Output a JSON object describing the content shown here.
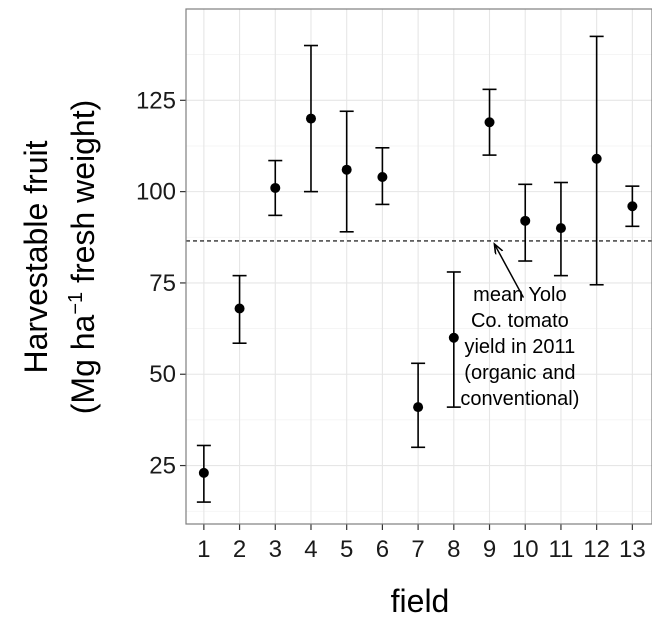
{
  "chart_data": {
    "type": "scatter",
    "subtype": "point-with-errorbars",
    "title": "",
    "xlabel": "field",
    "ylabel_line1": "Harvestable fruit",
    "ylabel_line2_pre": "(Mg ha",
    "ylabel_line2_sup": "−1",
    "ylabel_line2_post": " fresh weight)",
    "categories": [
      "1",
      "2",
      "3",
      "4",
      "5",
      "6",
      "7",
      "8",
      "9",
      "10",
      "11",
      "12",
      "13"
    ],
    "values": [
      23,
      68,
      101,
      120,
      106,
      104,
      41,
      60,
      119,
      92,
      90,
      109,
      96
    ],
    "error_low": [
      15,
      58.5,
      93.5,
      100,
      89,
      96.5,
      30,
      41,
      110,
      81,
      77,
      74.5,
      90.5
    ],
    "error_high": [
      30.5,
      77,
      108.5,
      140,
      122,
      112,
      53,
      78,
      128,
      102,
      102.5,
      142.5,
      101.5
    ],
    "yticks": [
      25,
      50,
      75,
      100,
      125
    ],
    "ylim": [
      9,
      150
    ],
    "xlim": [
      0.5,
      13.55
    ],
    "reference_line": {
      "y": 86.5,
      "style": "dashed"
    },
    "annotation": {
      "lines": [
        "mean Yolo",
        "Co. tomato",
        "yield in 2011",
        "(organic and",
        "conventional)"
      ],
      "text_anchor_x": 9.85,
      "text_anchor_y": 70,
      "arrow_from": [
        9.95,
        71
      ],
      "arrow_to": [
        9.15,
        86.5
      ]
    },
    "grid": true,
    "legend": "none",
    "colors": {
      "points": "#000000",
      "grid": "#e6e6e6",
      "panel_border": "#7f7f7f"
    }
  }
}
